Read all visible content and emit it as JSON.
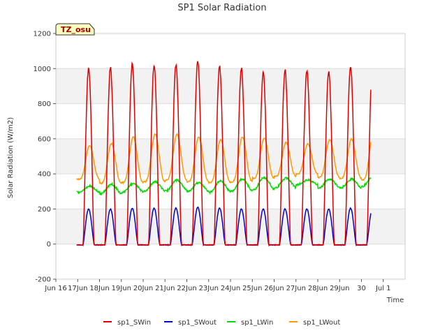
{
  "chart_data": {
    "type": "line",
    "title": "SP1 Solar Radiation",
    "xlabel": "Time",
    "ylabel": "Solar Radiation (W/m2)",
    "ylim": [
      -200,
      1200
    ],
    "yticks": [
      -200,
      0,
      200,
      400,
      600,
      800,
      1000,
      1200
    ],
    "xlim": [
      "2021-06-15",
      "2021-07-01"
    ],
    "xtick_labels": [
      "Jun 16",
      "17Jun",
      "18Jun",
      "19Jun",
      "20Jun",
      "21Jun",
      "22Jun",
      "23Jun",
      "24Jun",
      "25Jun",
      "26Jun",
      "27Jun",
      "28Jun",
      "29Jun",
      "30",
      "Jul 1"
    ],
    "grid": "horizontal bands",
    "legend_position": "bottom",
    "badge": "TZ_osu",
    "days": [
      "06-16",
      "06-17",
      "06-18",
      "06-19",
      "06-20",
      "06-21",
      "06-22",
      "06-23",
      "06-24",
      "06-25",
      "06-26",
      "06-27",
      "06-28",
      "06-29"
    ],
    "series": [
      {
        "name": "sp1_SWin",
        "color": "#dd0000",
        "peaks": [
          1005,
          1005,
          1025,
          1020,
          1020,
          1045,
          1015,
          1000,
          980,
          990,
          990,
          985,
          1015,
          1005
        ],
        "night": -5
      },
      {
        "name": "sp1_SWout",
        "color": "#0000cc",
        "peaks": [
          200,
          200,
          205,
          205,
          205,
          210,
          205,
          200,
          200,
          200,
          200,
          200,
          205,
          200
        ],
        "night": -5
      },
      {
        "name": "sp1_LWin",
        "color": "#00dd00",
        "peaks": [
          330,
          340,
          345,
          355,
          365,
          350,
          360,
          370,
          380,
          375,
          365,
          370,
          370,
          390
        ],
        "troughs": [
          295,
          285,
          295,
          300,
          305,
          300,
          295,
          300,
          310,
          320,
          340,
          320,
          320,
          330
        ]
      },
      {
        "name": "sp1_LWout",
        "color": "#ff9900",
        "peaks": [
          560,
          575,
          610,
          625,
          625,
          610,
          595,
          610,
          605,
          580,
          570,
          595,
          600,
          635
        ],
        "troughs": [
          370,
          345,
          350,
          355,
          365,
          355,
          350,
          355,
          375,
          385,
          400,
          380,
          375,
          365
        ]
      }
    ]
  }
}
